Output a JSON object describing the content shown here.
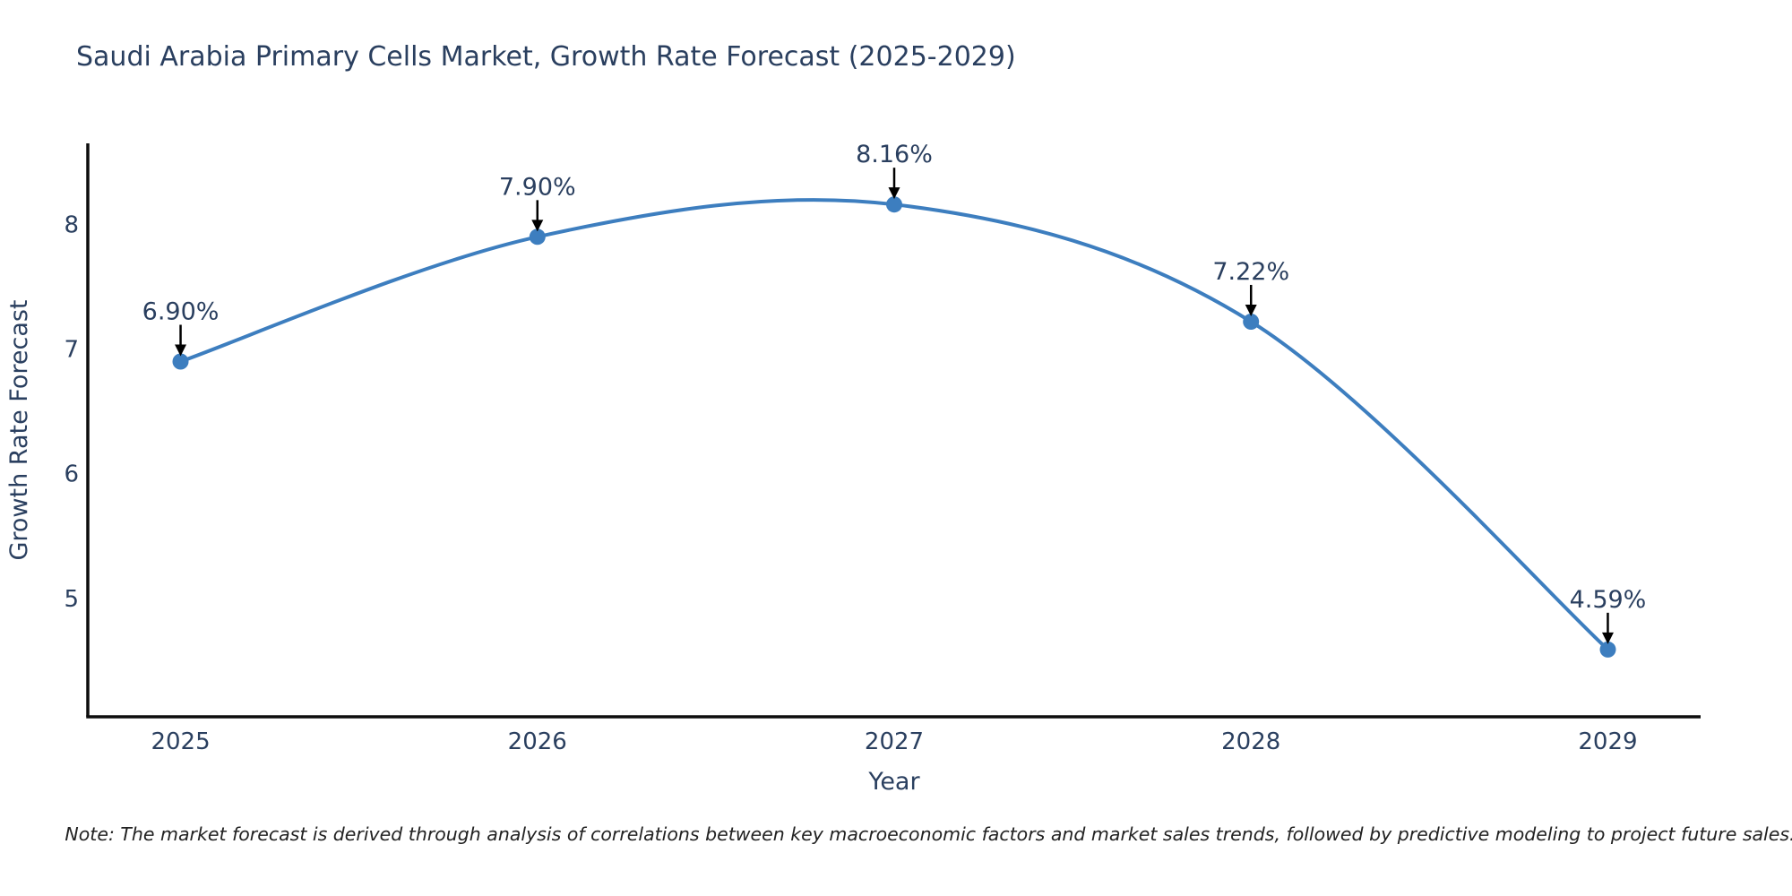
{
  "title": "Saudi Arabia Primary Cells Market, Growth Rate Forecast (2025-2029)",
  "note": "Note: The market forecast is derived through analysis of correlations between key macroeconomic factors and market sales trends, followed by predictive modeling to project future sales.",
  "chart_data": {
    "type": "line",
    "line_shape": "spline",
    "title": "Saudi Arabia Primary Cells Market, Growth Rate Forecast (2025-2029)",
    "xlabel": "Year",
    "ylabel": "Growth Rate Forecast",
    "x": [
      2025,
      2026,
      2027,
      2028,
      2029
    ],
    "values": [
      6.9,
      7.9,
      8.16,
      7.22,
      4.59
    ],
    "point_labels": [
      "6.90%",
      "7.90%",
      "8.16%",
      "7.22%",
      "4.59%"
    ],
    "x_tick_labels": [
      "2025",
      "2026",
      "2027",
      "2028",
      "2029"
    ],
    "y_ticks": [
      5,
      6,
      7,
      8
    ],
    "y_tick_labels": [
      "5",
      "6",
      "7",
      "8"
    ],
    "xlim": [
      2024.74,
      2029.26
    ],
    "ylim": [
      4.05,
      8.65
    ],
    "grid": false,
    "legend": "none",
    "annotations_arrow_direction": "down",
    "colors": {
      "line": "#3d7ebf",
      "marker": "#3d7ebf",
      "axis_line": "#0d0d0d",
      "chart_text": "#2a3f5f",
      "annotation_arrow": "#000000",
      "note_text": "#222222",
      "background": "#ffffff"
    }
  }
}
